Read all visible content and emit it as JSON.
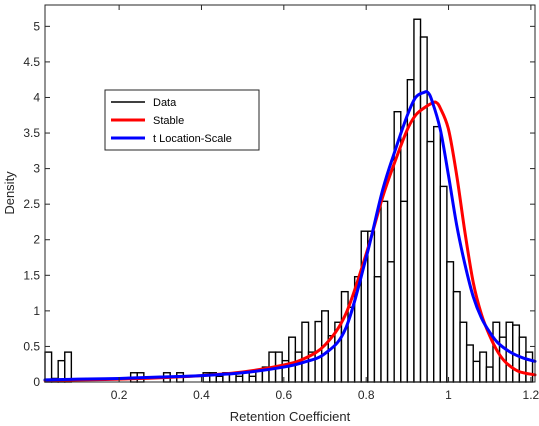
{
  "chart_data": {
    "type": "histogram",
    "xlabel": "Retention Coefficient",
    "ylabel": "Density",
    "xlim": [
      0.02,
      1.21
    ],
    "ylim": [
      0,
      5.3
    ],
    "grid": false,
    "legend_position": "upper-left",
    "xticks": [
      0.2,
      0.4,
      0.6,
      0.8,
      1,
      1.2
    ],
    "xtick_labels": [
      "0.2",
      "0.4",
      "0.6",
      "0.8",
      "1",
      "1.2"
    ],
    "yticks": [
      0,
      0.5,
      1,
      1.5,
      2,
      2.5,
      3,
      3.5,
      4,
      4.5,
      5
    ],
    "ytick_labels": [
      "0",
      "0.5",
      "1",
      "1.5",
      "2",
      "2.5",
      "3",
      "3.5",
      "4",
      "4.5",
      "5"
    ],
    "histogram": {
      "bin_start": 0.02,
      "bin_width": 0.016,
      "densities": [
        0.42,
        0.05,
        0.3,
        0.42,
        0,
        0,
        0,
        0,
        0,
        0,
        0,
        0,
        0,
        0.13,
        0.13,
        0,
        0,
        0,
        0.13,
        0,
        0.13,
        0,
        0,
        0,
        0.13,
        0.13,
        0.08,
        0.13,
        0.13,
        0.08,
        0.13,
        0.08,
        0.16,
        0.21,
        0.42,
        0.42,
        0.3,
        0.63,
        0.42,
        0.84,
        0.42,
        0.85,
        1.0,
        0.65,
        0.84,
        1.27,
        1.05,
        1.48,
        2.12,
        2.12,
        1.48,
        2.54,
        1.69,
        3.8,
        2.54,
        4.25,
        5.1,
        4.85,
        3.38,
        3.59,
        2.75,
        1.69,
        1.27,
        0.84,
        0.52,
        0.29,
        0.42,
        0.21,
        0.84,
        0.63,
        0.84,
        0.8,
        0.63,
        0.42
      ]
    },
    "series": [
      {
        "name": "Data",
        "color": "#000000"
      },
      {
        "name": "Stable",
        "color": "#ff0000",
        "x": [
          0.02,
          0.1,
          0.2,
          0.3,
          0.4,
          0.5,
          0.6,
          0.65,
          0.7,
          0.75,
          0.8,
          0.84,
          0.87,
          0.9,
          0.92,
          0.94,
          0.96,
          0.97,
          0.98,
          1.0,
          1.02,
          1.04,
          1.06,
          1.08,
          1.1,
          1.12,
          1.14,
          1.17,
          1.21
        ],
        "values": [
          0.02,
          0.03,
          0.04,
          0.06,
          0.09,
          0.14,
          0.24,
          0.33,
          0.52,
          0.95,
          1.8,
          2.6,
          3.1,
          3.55,
          3.75,
          3.85,
          3.92,
          3.93,
          3.85,
          3.55,
          2.9,
          2.1,
          1.4,
          0.95,
          0.65,
          0.42,
          0.27,
          0.15,
          0.1
        ]
      },
      {
        "name": "t Location-Scale",
        "color": "#0000ff",
        "x": [
          0.02,
          0.1,
          0.2,
          0.3,
          0.4,
          0.5,
          0.6,
          0.65,
          0.7,
          0.75,
          0.8,
          0.84,
          0.87,
          0.9,
          0.92,
          0.94,
          0.95,
          0.96,
          0.98,
          1.0,
          1.02,
          1.04,
          1.06,
          1.08,
          1.1,
          1.12,
          1.15,
          1.18,
          1.21
        ],
        "values": [
          0.03,
          0.04,
          0.05,
          0.07,
          0.09,
          0.13,
          0.21,
          0.28,
          0.4,
          0.75,
          1.75,
          2.7,
          3.25,
          3.75,
          4.0,
          4.07,
          4.07,
          3.95,
          3.55,
          2.9,
          2.2,
          1.65,
          1.2,
          0.9,
          0.7,
          0.55,
          0.42,
          0.34,
          0.29
        ]
      }
    ]
  }
}
